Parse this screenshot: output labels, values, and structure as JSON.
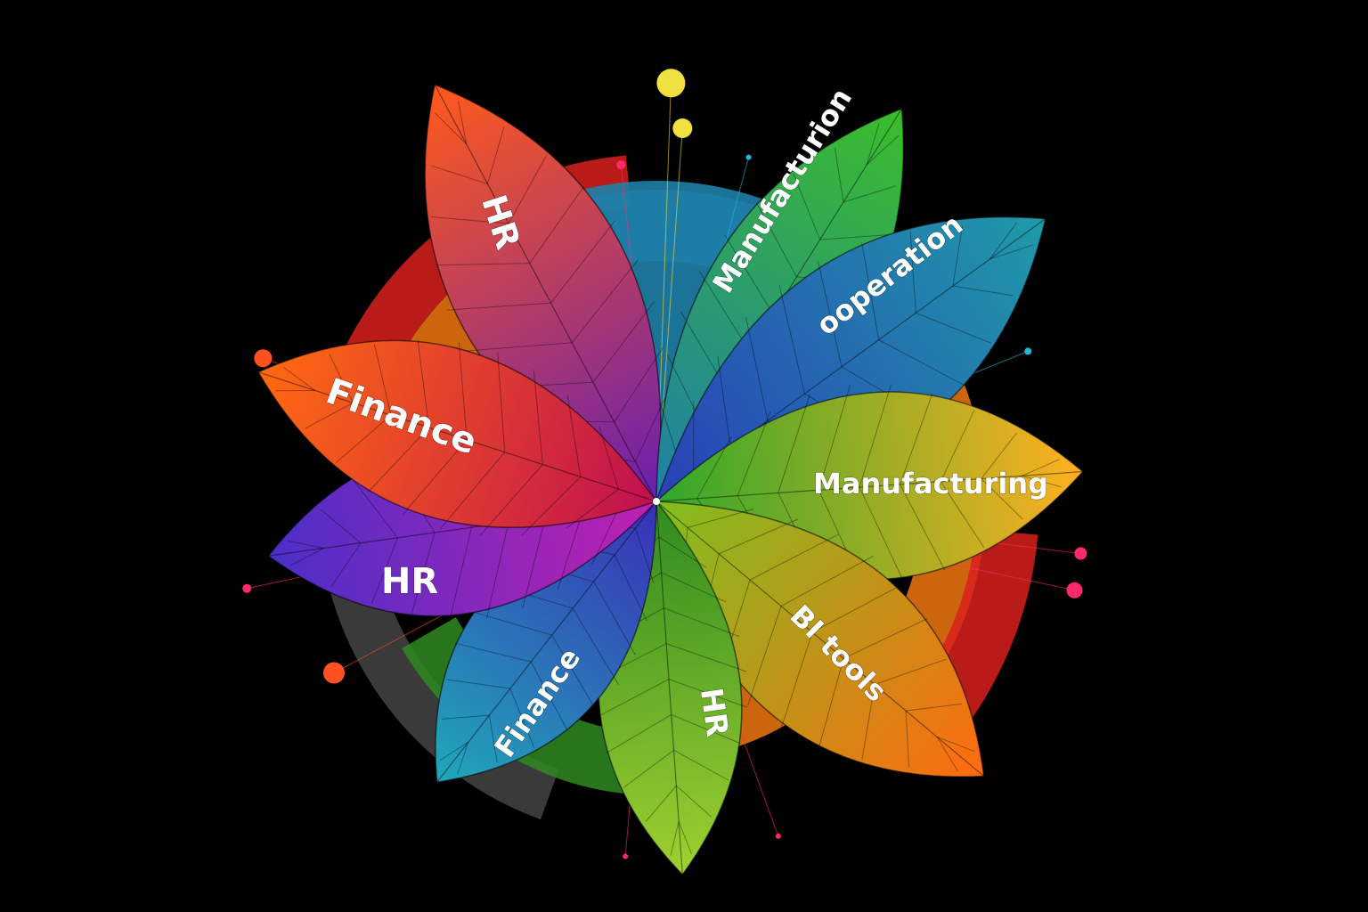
{
  "center_node": {
    "color": "#ffffff"
  },
  "leaves": [
    {
      "label": "HR",
      "color_base": "#6a1fb0",
      "color_tip": "#ff5a1a",
      "text_color": "#ffffff"
    },
    {
      "label": "Manufacturion",
      "color_base": "#1f7fa8",
      "color_tip": "#3bbd2a",
      "text_color": "#ffffff"
    },
    {
      "label": "ooperation",
      "color_base": "#2a3fb8",
      "color_tip": "#1f9aa8",
      "text_color": "#ffffff"
    },
    {
      "label": "Manufacturing",
      "color_base": "#2fa82a",
      "color_tip": "#ffb020",
      "text_color": "#ffffff"
    },
    {
      "label": "BI tools",
      "color_base": "#7fbf20",
      "color_tip": "#ff6a10",
      "text_color": "#ffffff"
    },
    {
      "label": "HR",
      "color_base": "#2f8a20",
      "color_tip": "#9fd030",
      "text_color": "#ffffff"
    },
    {
      "label": "Finance",
      "color_base": "#3a2fb8",
      "color_tip": "#1fa8b8",
      "text_color": "#ffffff"
    },
    {
      "label": "HR",
      "color_base": "#c020b0",
      "color_tip": "#4a2fc8",
      "text_color": "#ffffff"
    },
    {
      "label": "Finance",
      "color_base": "#c01050",
      "color_tip": "#ff6a10",
      "text_color": "#ffffff"
    }
  ],
  "backdrop_colors": [
    "#d8201c",
    "#f07810",
    "#2f8a20",
    "#1f7fa8",
    "#444444"
  ],
  "accent_dot_colors": [
    "#f0e040",
    "#ff2a6a",
    "#ff5020",
    "#20b8d8"
  ]
}
